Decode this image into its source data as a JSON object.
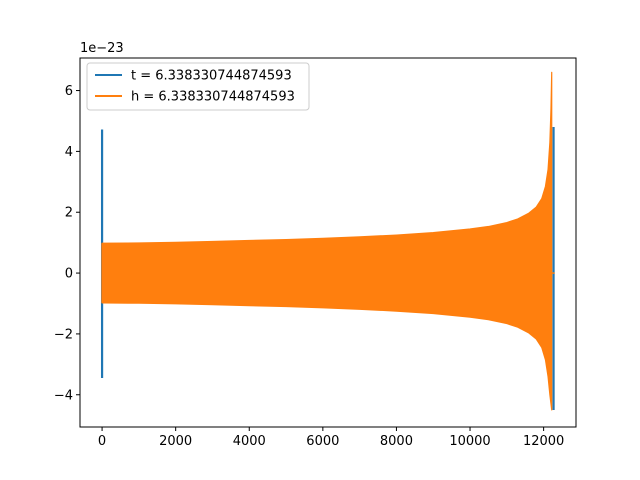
{
  "chart_data": {
    "type": "line",
    "title": "",
    "xlabel": "",
    "ylabel": "",
    "offset_text": "1e−23",
    "xlim": [
      -600,
      12880
    ],
    "ylim": [
      -5.06,
      7.07
    ],
    "xticks": [
      0,
      2000,
      4000,
      6000,
      8000,
      10000,
      12000
    ],
    "xtick_labels": [
      "0",
      "2000",
      "4000",
      "6000",
      "8000",
      "10000",
      "12000"
    ],
    "yticks": [
      -4,
      -2,
      0,
      2,
      4,
      6
    ],
    "ytick_labels": [
      "−4",
      "−2",
      "0",
      "2",
      "4",
      "6"
    ],
    "grid": false,
    "legend": {
      "position": "upper-left"
    },
    "series": [
      {
        "name": "t = 6.338330744874593",
        "color": "#1f77b4",
        "description_points": [
          {
            "x": 0,
            "y_min": -3.45,
            "y_max": 4.72
          },
          {
            "x": 12270,
            "y_min": -4.5,
            "y_max": 4.8
          }
        ]
      },
      {
        "name": "h = 6.338330744874593",
        "color": "#ff7f0e",
        "envelope": {
          "x": [
            0,
            1000,
            2000,
            3000,
            4000,
            5000,
            6000,
            7000,
            8000,
            9000,
            10000,
            10500,
            11000,
            11300,
            11600,
            11800,
            11950,
            12050,
            12120,
            12170,
            12200,
            12220
          ],
          "upper": [
            0.98,
            0.99,
            1.01,
            1.04,
            1.07,
            1.1,
            1.14,
            1.19,
            1.25,
            1.33,
            1.45,
            1.53,
            1.66,
            1.78,
            1.97,
            2.17,
            2.45,
            2.85,
            3.4,
            4.3,
            5.4,
            6.6
          ],
          "lower": [
            -0.98,
            -0.99,
            -1.01,
            -1.04,
            -1.07,
            -1.1,
            -1.14,
            -1.19,
            -1.25,
            -1.33,
            -1.45,
            -1.53,
            -1.66,
            -1.78,
            -1.97,
            -2.17,
            -2.45,
            -2.85,
            -3.4,
            -4.0,
            -4.3,
            -4.5
          ]
        }
      }
    ]
  }
}
